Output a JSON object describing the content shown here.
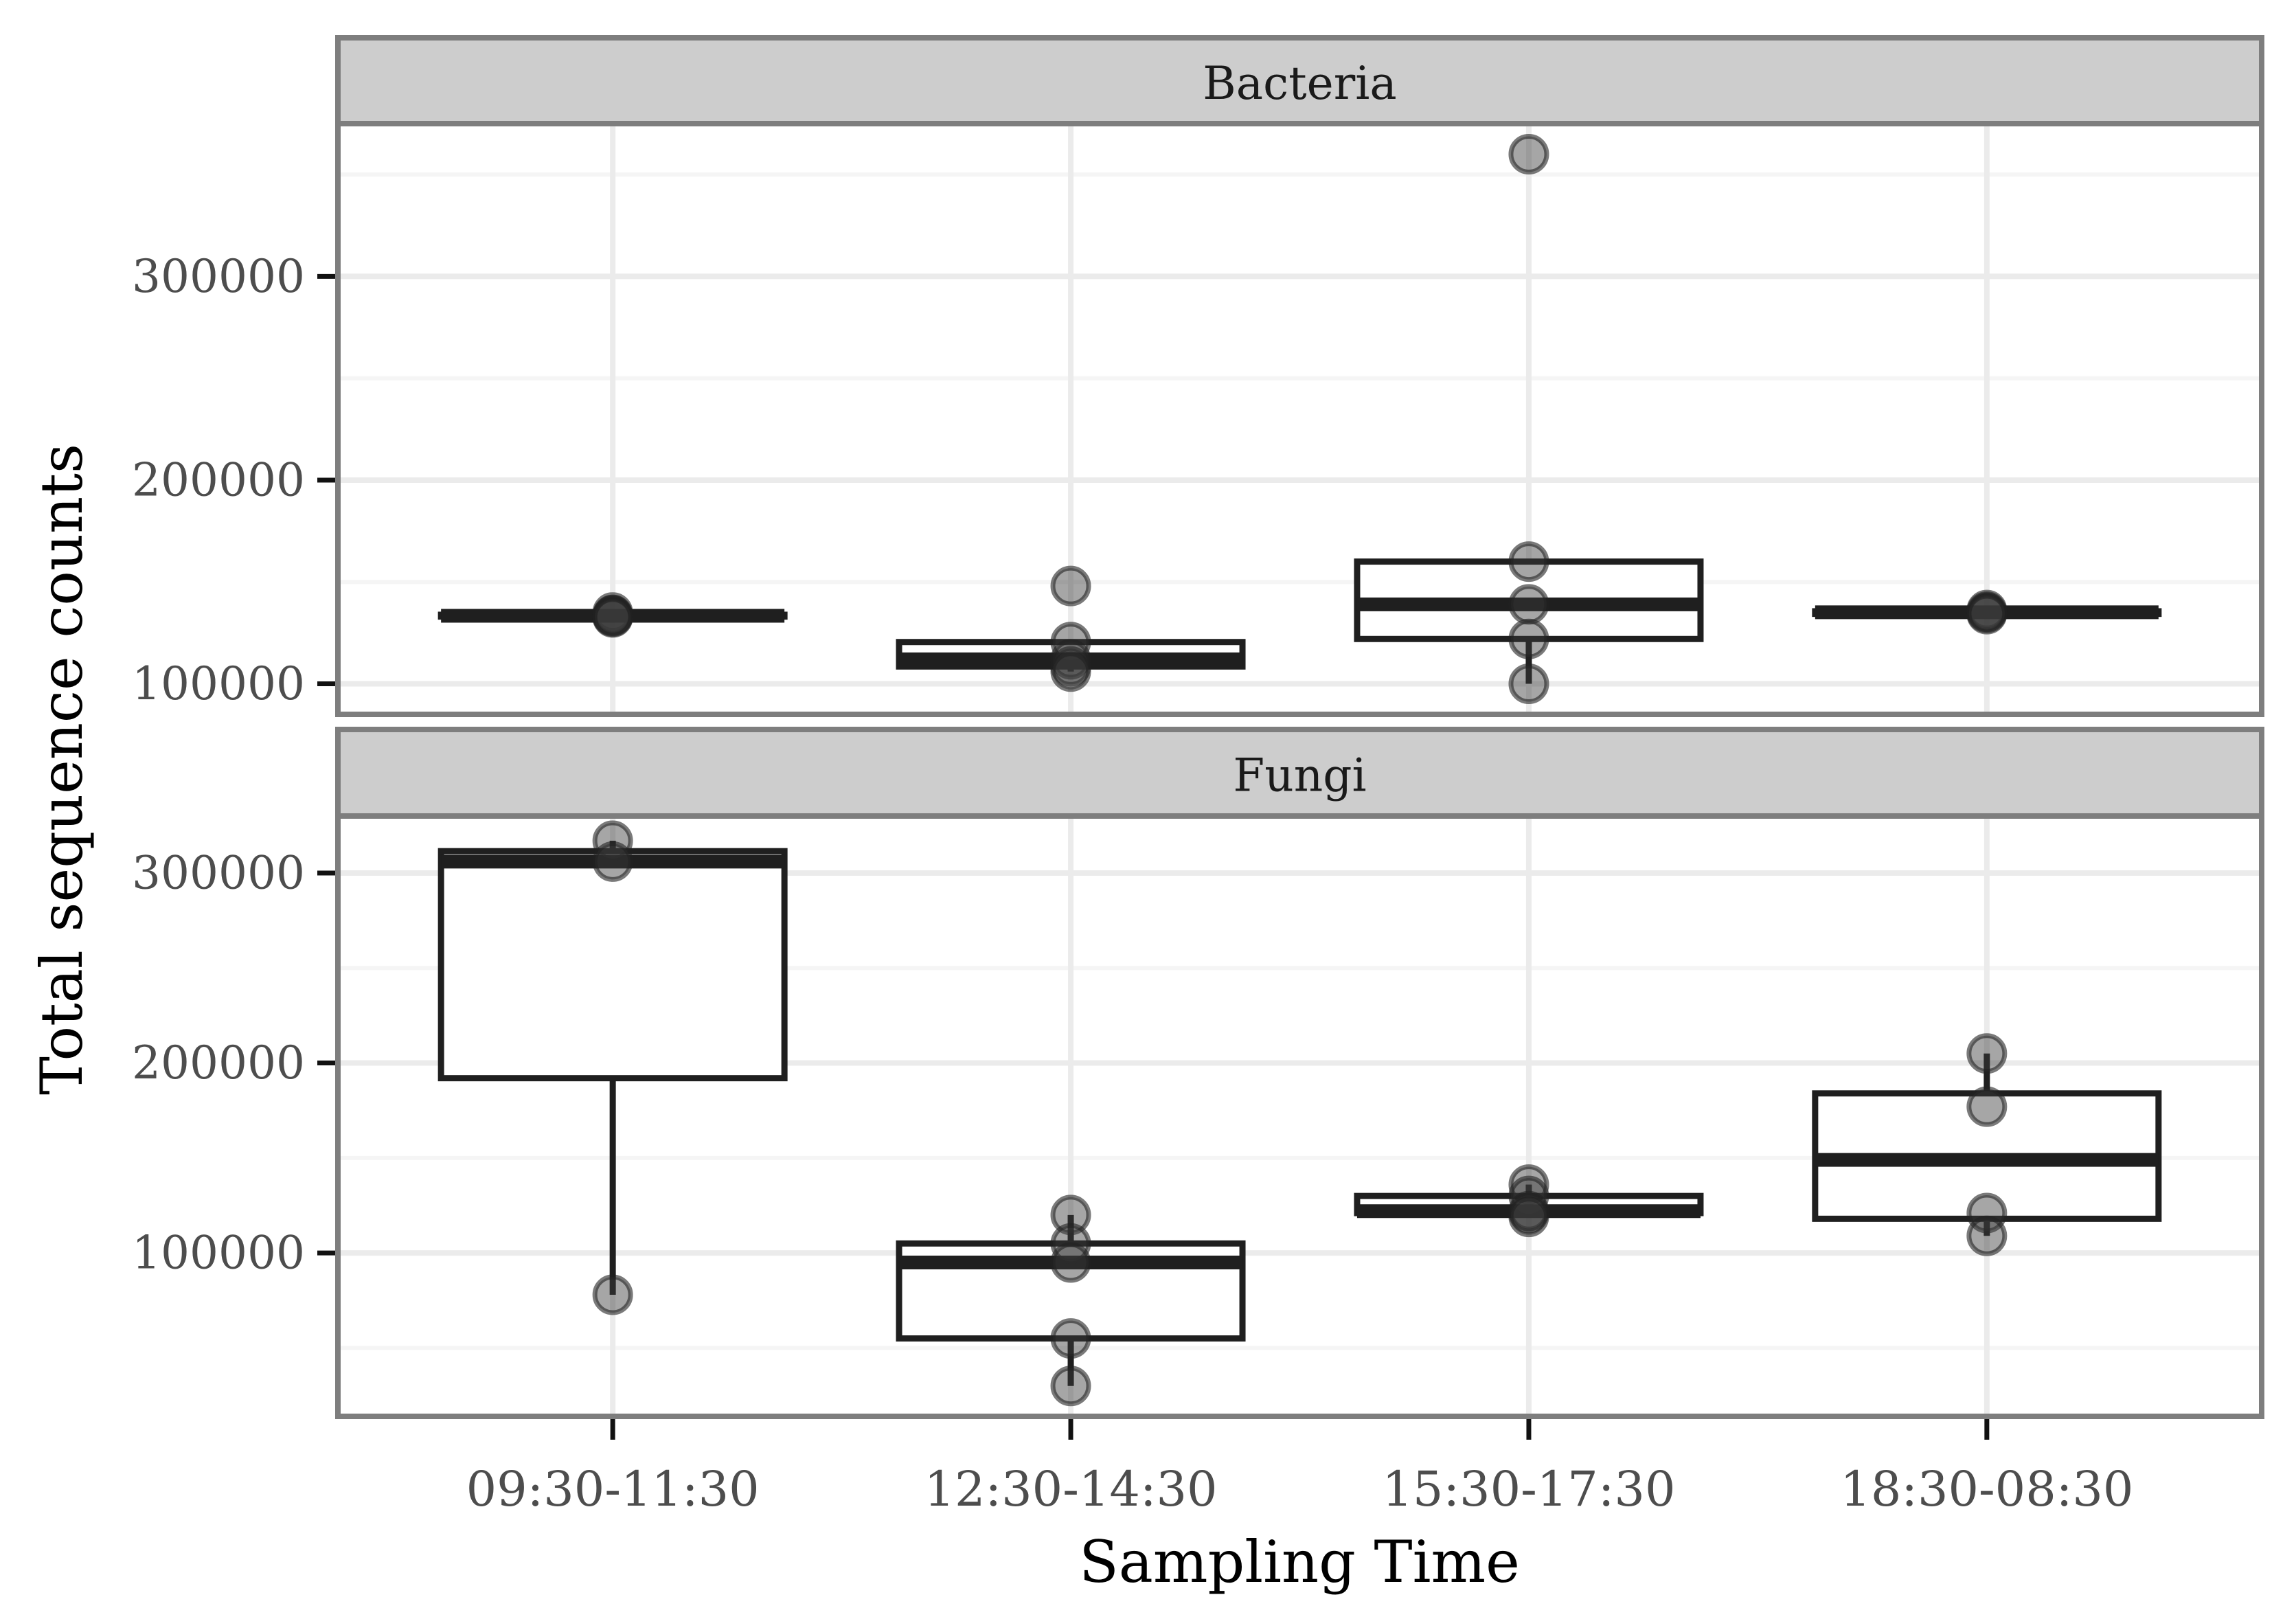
{
  "figure": {
    "y_axis_title": "Total sequence counts",
    "x_axis_title": "Sampling Time"
  },
  "colors": {
    "background": "#FFFFFF",
    "strip_fill": "#CDCDCD",
    "panel_border": "#7E7E7E",
    "strip_text": "#1A1A1A",
    "grid_major": "#EBEBEB",
    "grid_minor": "#F5F5F5",
    "box_stroke": "#1F1F1F",
    "box_fill": "#FFFFFF",
    "point_fill": "#3A3A3A",
    "point_stroke": "#222222",
    "tick_mark": "#111111",
    "tick_label": "#4D4D4D"
  },
  "chart_data": {
    "type": "boxplot",
    "title": "",
    "xlabel": "Sampling Time",
    "ylabel": "Total sequence counts",
    "grid": true,
    "legend": "none",
    "x_categories": [
      "09:30-11:30",
      "12:30-14:30",
      "15:30-17:30",
      "18:30-08:30"
    ],
    "facets": [
      {
        "label": "Bacteria",
        "ylim": [
          85000,
          375000
        ],
        "yticks": [
          {
            "value": 100000,
            "label": "100000"
          },
          {
            "value": 200000,
            "label": "200000"
          },
          {
            "value": 300000,
            "label": "300000"
          }
        ],
        "minor_gridlines": [
          150000,
          250000,
          350000
        ],
        "groups": [
          {
            "category": "09:30-11:30",
            "q1": 133000,
            "median": 133400,
            "q3": 133900,
            "whisker_low": 132600,
            "whisker_high": 135000,
            "points": [
              135000,
              133800,
              133400,
              133000,
              132600
            ]
          },
          {
            "category": "12:30-14:30",
            "q1": 108500,
            "median": 112000,
            "q3": 120500,
            "whisker_low": 106000,
            "whisker_high": 120500,
            "points": [
              148000,
              120500,
              112000,
              108500,
              106000
            ]
          },
          {
            "category": "15:30-17:30",
            "q1": 122000,
            "median": 139000,
            "q3": 160000,
            "whisker_low": 100000,
            "whisker_high": 160000,
            "points": [
              360000,
              160000,
              139000,
              122000,
              100000
            ]
          },
          {
            "category": "18:30-08:30",
            "q1": 134350,
            "median": 135100,
            "q3": 135600,
            "whisker_low": 134200,
            "whisker_high": 136200,
            "points": [
              136200,
              135400,
              134800,
              134200
            ]
          }
        ]
      },
      {
        "label": "Fungi",
        "ylim": [
          14000,
          330000
        ],
        "yticks": [
          {
            "value": 100000,
            "label": "100000"
          },
          {
            "value": 200000,
            "label": "200000"
          },
          {
            "value": 300000,
            "label": "300000"
          }
        ],
        "minor_gridlines": [
          50000,
          150000,
          250000
        ],
        "groups": [
          {
            "category": "09:30-11:30",
            "q1": 192000,
            "median": 306000,
            "q3": 311500,
            "whisker_low": 78000,
            "whisker_high": 317000,
            "points": [
              317000,
              306000,
              78000
            ]
          },
          {
            "category": "12:30-14:30",
            "q1": 55000,
            "median": 95000,
            "q3": 105000,
            "whisker_low": 30000,
            "whisker_high": 120000,
            "points": [
              120000,
              105000,
              95000,
              55000,
              30000
            ]
          },
          {
            "category": "15:30-17:30",
            "q1": 121000,
            "median": 122000,
            "q3": 130000,
            "whisker_low": 119000,
            "whisker_high": 136000,
            "points": [
              136000,
              130000,
              122000,
              121000,
              119000
            ]
          },
          {
            "category": "18:30-08:30",
            "q1": 118000,
            "median": 149000,
            "q3": 184000,
            "whisker_low": 109000,
            "whisker_high": 205000,
            "points": [
              205000,
              177000,
              121000,
              109000
            ]
          }
        ]
      }
    ]
  }
}
